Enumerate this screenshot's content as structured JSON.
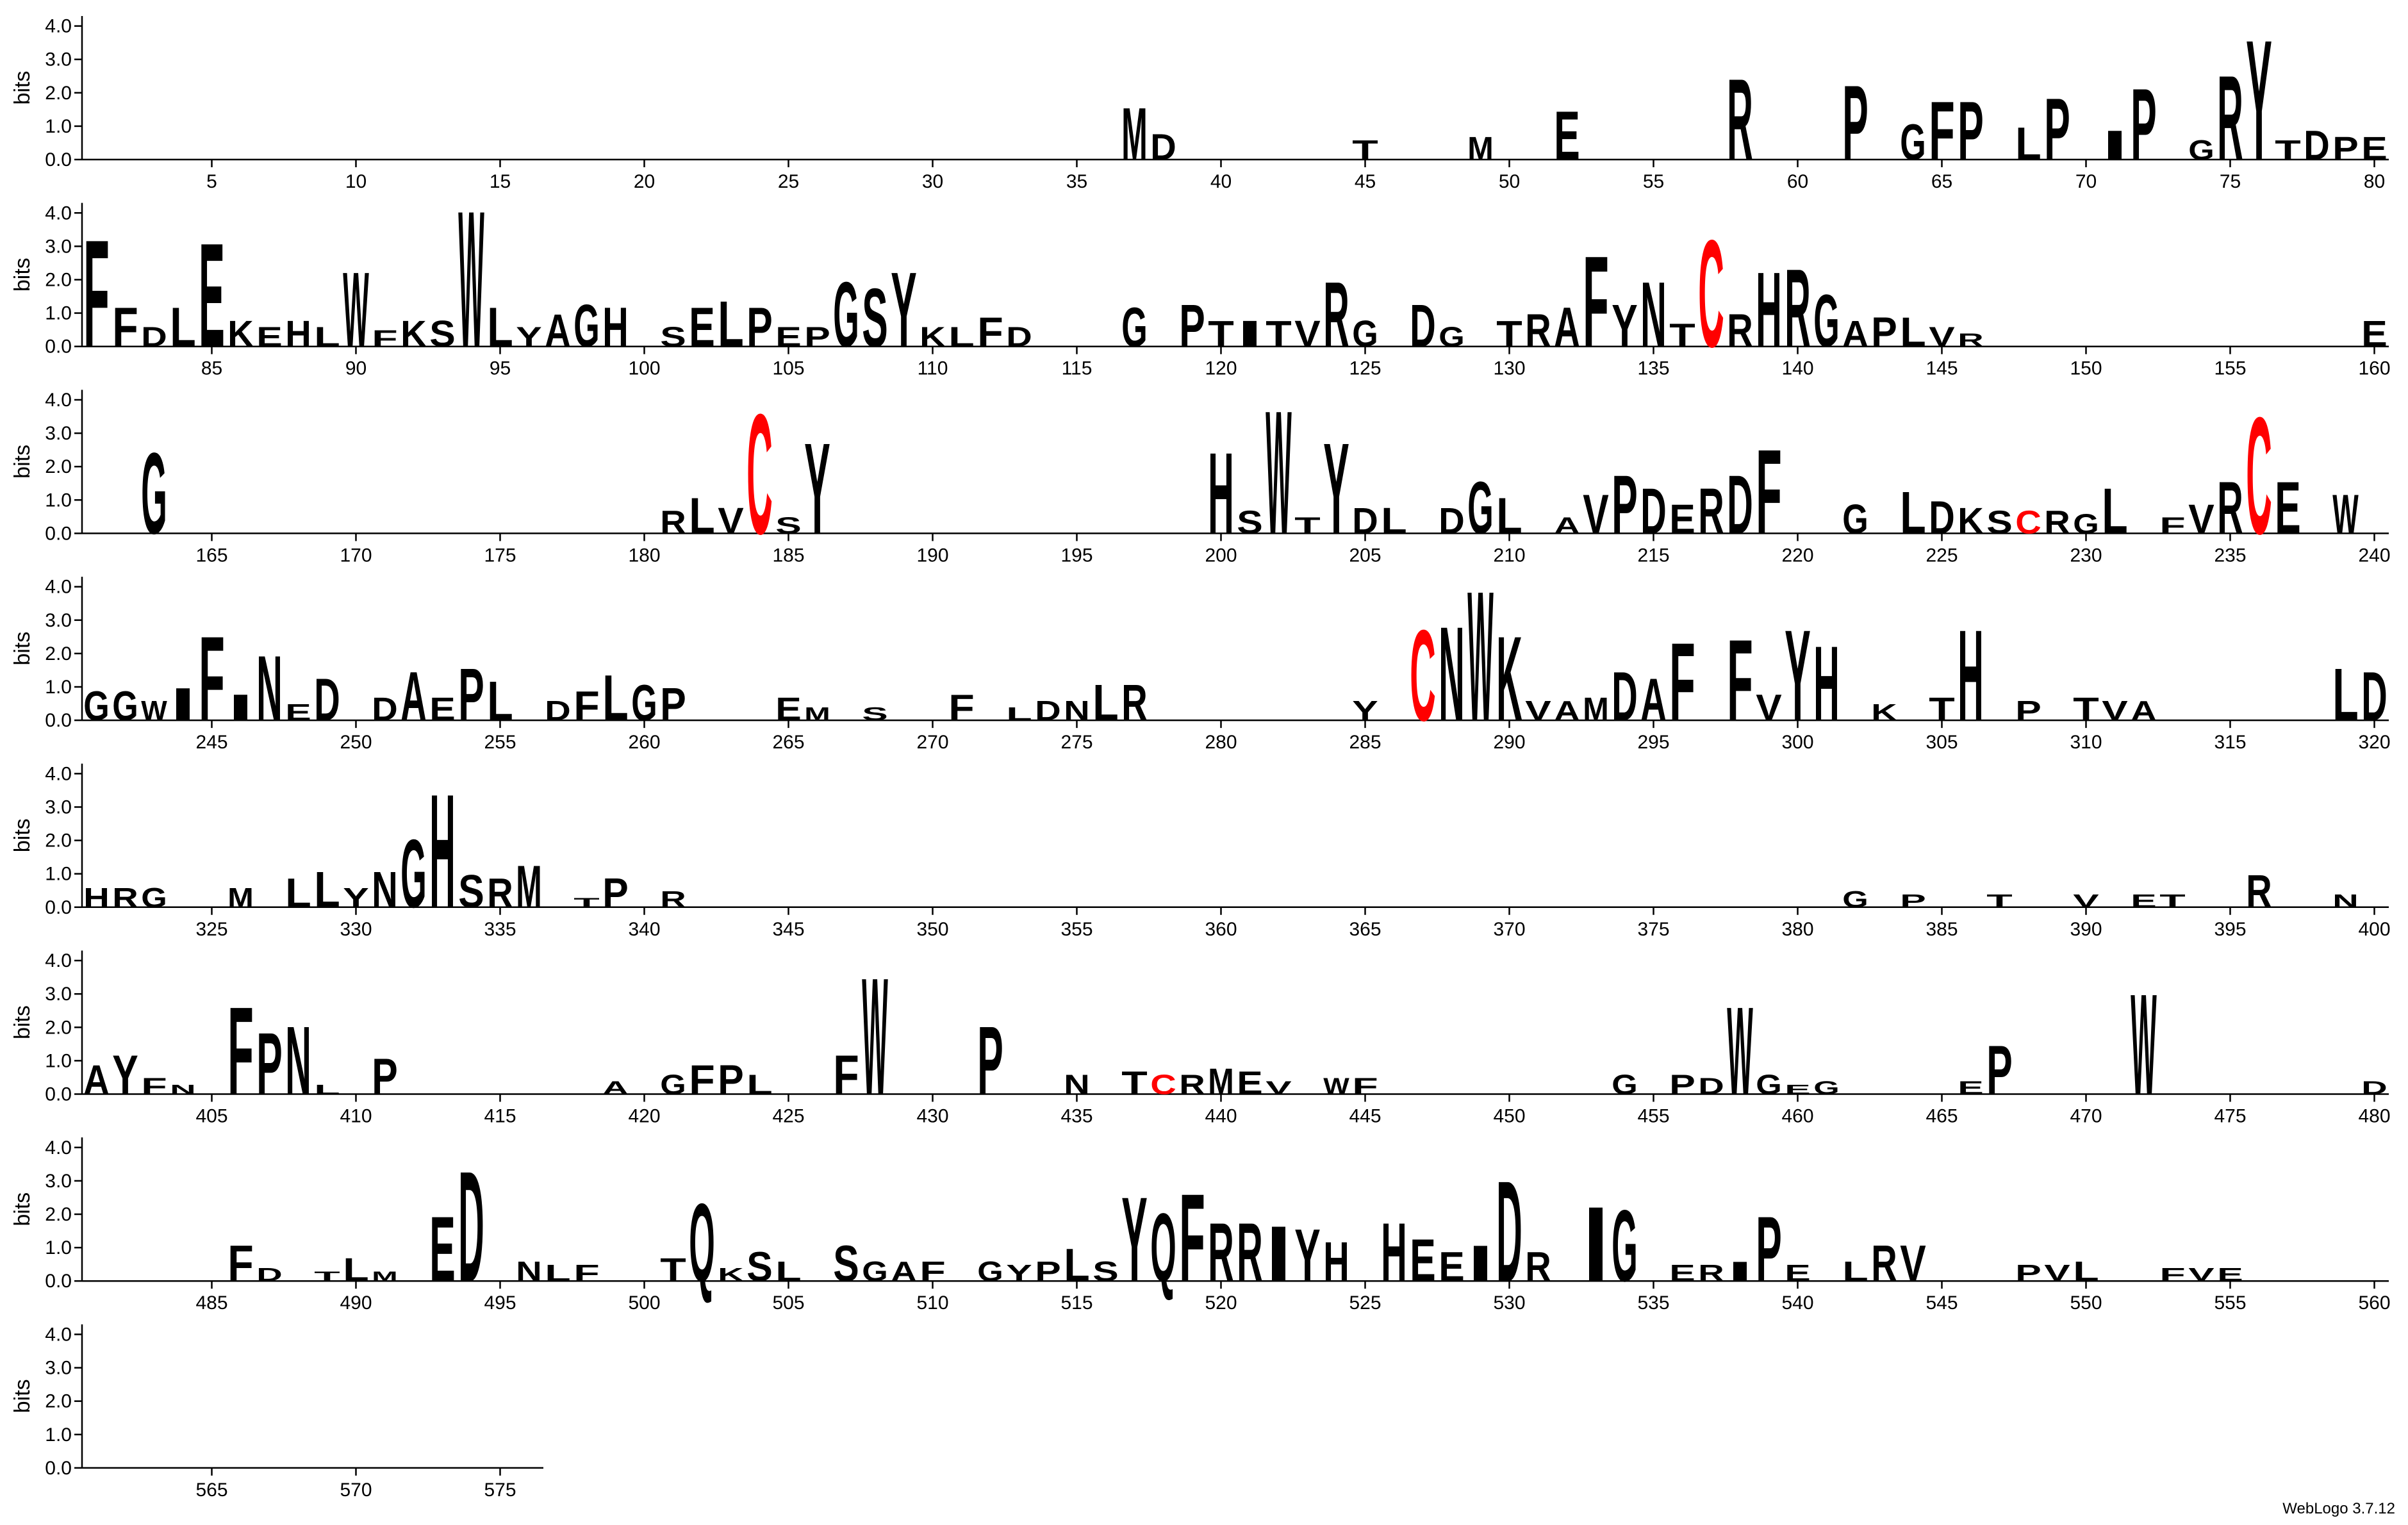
{
  "chart_data": [
    {
      "type": "logo",
      "y_label": "bits",
      "xlim": [
        0.5,
        80.5
      ],
      "ylim": [
        0,
        4.3
      ],
      "xticks": [
        5,
        10,
        15,
        20,
        25,
        30,
        35,
        40,
        45,
        50,
        55,
        60,
        65,
        70,
        75,
        80
      ],
      "yticks": [
        {
          "value": 0,
          "label": "0.0"
        },
        {
          "value": 1,
          "label": "1.0"
        },
        {
          "value": 2,
          "label": "2.0"
        },
        {
          "value": 3,
          "label": "3.0"
        },
        {
          "value": 4,
          "label": "4.0"
        }
      ],
      "color": "#000000",
      "highlight": {
        "letter": "C",
        "color": "#ff0000"
      },
      "x": [
        37,
        38,
        45,
        49,
        52,
        58,
        62,
        64,
        65,
        66,
        68,
        69,
        71,
        72,
        74,
        75,
        76,
        77,
        78,
        79,
        80
      ],
      "letters": [
        "M",
        "D",
        "T",
        "M",
        "E",
        "R",
        "P",
        "G",
        "F",
        "P",
        "L",
        "P",
        "I",
        "P",
        "G",
        "R",
        "Y",
        "T",
        "D",
        "P",
        "E"
      ],
      "values": [
        1.6,
        0.8,
        0.6,
        0.7,
        1.5,
        2.5,
        2.3,
        1.1,
        1.8,
        1.8,
        1.0,
        1.9,
        0.9,
        2.2,
        0.6,
        2.6,
        3.7,
        0.6,
        0.9,
        0.7,
        0.7
      ]
    },
    {
      "type": "logo",
      "y_label": "bits",
      "xlim": [
        80.5,
        160.5
      ],
      "ylim": [
        0,
        4.3
      ],
      "xticks": [
        85,
        90,
        95,
        100,
        105,
        110,
        115,
        120,
        125,
        130,
        135,
        140,
        145,
        150,
        155,
        160
      ],
      "yticks": [
        {
          "value": 0,
          "label": "0.0"
        },
        {
          "value": 1,
          "label": "1.0"
        },
        {
          "value": 2,
          "label": "2.0"
        },
        {
          "value": 3,
          "label": "3.0"
        },
        {
          "value": 4,
          "label": "4.0"
        }
      ],
      "color": "#000000",
      "highlight": {
        "letter": "C",
        "color": "#ff0000"
      },
      "x": [
        81,
        82,
        83,
        84,
        85,
        86,
        87,
        88,
        89,
        90,
        91,
        92,
        93,
        94,
        95,
        96,
        97,
        98,
        99,
        101,
        102,
        103,
        104,
        105,
        106,
        107,
        108,
        109,
        110,
        111,
        112,
        113,
        117,
        119,
        120,
        121,
        122,
        123,
        124,
        125,
        127,
        128,
        130,
        131,
        132,
        133,
        134,
        135,
        136,
        137,
        138,
        139,
        140,
        141,
        142,
        143,
        144,
        145,
        146,
        160
      ],
      "letters": [
        "F",
        "F",
        "D",
        "L",
        "E",
        "K",
        "E",
        "H",
        "L",
        "W",
        "F",
        "K",
        "S",
        "W",
        "L",
        "Y",
        "A",
        "G",
        "H",
        "S",
        "E",
        "L",
        "P",
        "E",
        "P",
        "G",
        "S",
        "Y",
        "K",
        "L",
        "F",
        "D",
        "G",
        "P",
        "T",
        "I",
        "T",
        "V",
        "R",
        "G",
        "D",
        "G",
        "T",
        "R",
        "A",
        "F",
        "Y",
        "N",
        "T",
        "C",
        "R",
        "H",
        "R",
        "G",
        "A",
        "P",
        "L",
        "V",
        "R",
        "E"
      ],
      "values": [
        3.3,
        1.2,
        0.6,
        1.2,
        3.2,
        0.8,
        0.6,
        0.8,
        0.6,
        2.3,
        0.5,
        0.8,
        0.8,
        4.2,
        1.2,
        0.6,
        1.0,
        1.3,
        1.2,
        0.6,
        1.2,
        1.4,
        1.2,
        0.6,
        0.6,
        2.0,
        1.8,
        2.3,
        0.6,
        0.6,
        0.9,
        0.6,
        1.2,
        1.3,
        0.8,
        0.8,
        0.8,
        0.8,
        2.0,
        0.8,
        1.3,
        0.6,
        0.8,
        1.0,
        1.2,
        2.8,
        1.3,
        2.0,
        0.7,
        3.3,
        1.0,
        2.3,
        2.4,
        1.6,
        0.8,
        0.9,
        0.9,
        0.6,
        0.4,
        0.8
      ]
    },
    {
      "type": "logo",
      "y_label": "bits",
      "xlim": [
        160.5,
        240.5
      ],
      "ylim": [
        0,
        4.3
      ],
      "xticks": [
        165,
        170,
        175,
        180,
        185,
        190,
        195,
        200,
        205,
        210,
        215,
        220,
        225,
        230,
        235,
        240
      ],
      "yticks": [
        {
          "value": 0,
          "label": "0.0"
        },
        {
          "value": 1,
          "label": "1.0"
        },
        {
          "value": 2,
          "label": "2.0"
        },
        {
          "value": 3,
          "label": "3.0"
        },
        {
          "value": 4,
          "label": "4.0"
        }
      ],
      "color": "#000000",
      "highlight": {
        "letter": "C",
        "color": "#ff0000"
      },
      "x": [
        163,
        181,
        182,
        183,
        184,
        185,
        186,
        200,
        201,
        202,
        203,
        204,
        205,
        206,
        208,
        209,
        210,
        212,
        213,
        214,
        215,
        216,
        217,
        218,
        219,
        222,
        224,
        225,
        226,
        227,
        228,
        229,
        230,
        231,
        233,
        234,
        235,
        236,
        237,
        239
      ],
      "letters": [
        "G",
        "R",
        "L",
        "V",
        "C",
        "S",
        "Y",
        "H",
        "S",
        "W",
        "T",
        "Y",
        "D",
        "L",
        "D",
        "G",
        "L",
        "A",
        "V",
        "P",
        "D",
        "E",
        "R",
        "D",
        "F",
        "G",
        "L",
        "D",
        "K",
        "S",
        "C",
        "R",
        "G",
        "L",
        "F",
        "V",
        "R",
        "C",
        "E",
        "W"
      ],
      "values": [
        2.5,
        0.7,
        1.1,
        0.8,
        3.7,
        0.5,
        2.8,
        2.5,
        0.7,
        3.8,
        0.5,
        2.8,
        0.8,
        0.8,
        0.8,
        1.6,
        1.1,
        0.5,
        1.2,
        1.8,
        1.4,
        0.9,
        1.4,
        1.8,
        2.6,
        0.9,
        1.3,
        1.0,
        0.8,
        0.7,
        0.7,
        0.7,
        0.6,
        1.4,
        0.5,
        0.9,
        1.6,
        3.6,
        1.6,
        1.2
      ]
    },
    {
      "type": "logo",
      "y_label": "bits",
      "xlim": [
        240.5,
        320.5
      ],
      "ylim": [
        0,
        4.3
      ],
      "xticks": [
        245,
        250,
        255,
        260,
        265,
        270,
        275,
        280,
        285,
        290,
        295,
        300,
        305,
        310,
        315,
        320
      ],
      "yticks": [
        {
          "value": 0,
          "label": "0.0"
        },
        {
          "value": 1,
          "label": "1.0"
        },
        {
          "value": 2,
          "label": "2.0"
        },
        {
          "value": 3,
          "label": "3.0"
        },
        {
          "value": 4,
          "label": "4.0"
        }
      ],
      "color": "#000000",
      "highlight": {
        "letter": "C",
        "color": "#ff0000"
      },
      "x": [
        241,
        242,
        243,
        244,
        245,
        246,
        247,
        248,
        249,
        251,
        252,
        253,
        254,
        255,
        257,
        258,
        259,
        260,
        261,
        265,
        266,
        268,
        271,
        273,
        274,
        275,
        276,
        277,
        285,
        287,
        288,
        289,
        290,
        291,
        292,
        293,
        294,
        295,
        296,
        298,
        299,
        300,
        301,
        303,
        305,
        306,
        308,
        310,
        311,
        312,
        319,
        320
      ],
      "letters": [
        "G",
        "G",
        "W",
        "I",
        "F",
        "I",
        "N",
        "E",
        "D",
        "D",
        "A",
        "E",
        "P",
        "L",
        "D",
        "F",
        "L",
        "G",
        "P",
        "E",
        "M",
        "S",
        "F",
        "L",
        "D",
        "N",
        "L",
        "R",
        "Y",
        "C",
        "N",
        "W",
        "K",
        "V",
        "A",
        "M",
        "D",
        "A",
        "F",
        "F",
        "V",
        "Y",
        "H",
        "K",
        "T",
        "H",
        "P",
        "T",
        "V",
        "A",
        "L",
        "D"
      ],
      "values": [
        0.9,
        0.9,
        0.6,
        1.0,
        2.6,
        0.8,
        2.0,
        0.5,
        1.3,
        0.7,
        1.5,
        0.7,
        1.6,
        1.2,
        0.6,
        0.9,
        1.4,
        1.1,
        1.0,
        0.7,
        0.4,
        0.4,
        0.8,
        0.4,
        0.6,
        0.6,
        1.1,
        1.1,
        0.6,
        2.8,
        2.9,
        4.0,
        2.6,
        0.6,
        0.6,
        0.7,
        1.5,
        1.3,
        2.4,
        2.5,
        0.8,
        2.8,
        2.3,
        0.5,
        0.7,
        2.8,
        0.6,
        0.7,
        0.6,
        0.6,
        1.6,
        1.5
      ]
    },
    {
      "type": "logo",
      "y_label": "bits",
      "xlim": [
        320.5,
        400.5
      ],
      "ylim": [
        0,
        4.3
      ],
      "xticks": [
        325,
        330,
        335,
        340,
        345,
        350,
        355,
        360,
        365,
        370,
        375,
        380,
        385,
        390,
        395,
        400
      ],
      "yticks": [
        {
          "value": 0,
          "label": "0.0"
        },
        {
          "value": 1,
          "label": "1.0"
        },
        {
          "value": 2,
          "label": "2.0"
        },
        {
          "value": 3,
          "label": "3.0"
        },
        {
          "value": 4,
          "label": "4.0"
        }
      ],
      "color": "#000000",
      "highlight": {
        "letter": "C",
        "color": "#ff0000"
      },
      "x": [
        321,
        322,
        323,
        326,
        328,
        329,
        330,
        331,
        332,
        333,
        334,
        335,
        336,
        338,
        339,
        341,
        382,
        384,
        387,
        390,
        392,
        393,
        396,
        399
      ],
      "letters": [
        "H",
        "R",
        "G",
        "M",
        "L",
        "L",
        "Y",
        "N",
        "G",
        "H",
        "S",
        "R",
        "M",
        "T",
        "P",
        "R",
        "G",
        "P",
        "T",
        "V",
        "E",
        "T",
        "R",
        "N"
      ],
      "values": [
        0.6,
        0.6,
        0.6,
        0.6,
        0.9,
        1.1,
        0.6,
        1.1,
        2.1,
        3.5,
        1.0,
        0.9,
        1.3,
        0.3,
        0.9,
        0.5,
        0.5,
        0.4,
        0.4,
        0.4,
        0.4,
        0.4,
        1.0,
        0.4
      ]
    },
    {
      "type": "logo",
      "y_label": "bits",
      "xlim": [
        400.5,
        480.5
      ],
      "ylim": [
        0,
        4.3
      ],
      "xticks": [
        405,
        410,
        415,
        420,
        425,
        430,
        435,
        440,
        445,
        450,
        455,
        460,
        465,
        470,
        475,
        480
      ],
      "yticks": [
        {
          "value": 0,
          "label": "0.0"
        },
        {
          "value": 1,
          "label": "1.0"
        },
        {
          "value": 2,
          "label": "2.0"
        },
        {
          "value": 3,
          "label": "3.0"
        },
        {
          "value": 4,
          "label": "4.0"
        }
      ],
      "color": "#000000",
      "highlight": {
        "letter": "C",
        "color": "#ff0000"
      },
      "x": [
        401,
        402,
        403,
        404,
        406,
        407,
        408,
        409,
        411,
        419,
        421,
        422,
        423,
        424,
        427,
        428,
        432,
        435,
        437,
        438,
        439,
        440,
        441,
        442,
        444,
        445,
        454,
        456,
        457,
        458,
        459,
        460,
        461,
        466,
        467,
        472,
        480
      ],
      "letters": [
        "A",
        "Y",
        "F",
        "N",
        "F",
        "P",
        "N",
        "L",
        "P",
        "A",
        "G",
        "F",
        "P",
        "L",
        "F",
        "W",
        "P",
        "N",
        "T",
        "C",
        "R",
        "M",
        "E",
        "V",
        "W",
        "F",
        "G",
        "P",
        "D",
        "W",
        "G",
        "E",
        "G",
        "E",
        "P",
        "W",
        "D"
      ],
      "values": [
        0.9,
        1.2,
        0.5,
        0.3,
        2.7,
        1.9,
        2.1,
        0.3,
        1.1,
        0.4,
        0.6,
        0.9,
        0.9,
        0.6,
        1.2,
        3.6,
        2.1,
        0.6,
        0.7,
        0.6,
        0.6,
        0.8,
        0.7,
        0.4,
        0.5,
        0.5,
        0.6,
        0.6,
        0.5,
        2.7,
        0.6,
        0.3,
        0.4,
        0.4,
        1.5,
        3.1,
        0.4
      ]
    },
    {
      "type": "logo",
      "y_label": "bits",
      "xlim": [
        480.5,
        560.5
      ],
      "ylim": [
        0,
        4.3
      ],
      "xticks": [
        485,
        490,
        495,
        500,
        505,
        510,
        515,
        520,
        525,
        530,
        535,
        540,
        545,
        550,
        555,
        560
      ],
      "yticks": [
        {
          "value": 0,
          "label": "0.0"
        },
        {
          "value": 1,
          "label": "1.0"
        },
        {
          "value": 2,
          "label": "2.0"
        },
        {
          "value": 3,
          "label": "3.0"
        },
        {
          "value": 4,
          "label": "4.0"
        }
      ],
      "color": "#000000",
      "highlight": {
        "letter": "C",
        "color": "#ff0000"
      },
      "x": [
        486,
        487,
        489,
        490,
        491,
        493,
        494,
        496,
        497,
        498,
        501,
        502,
        503,
        504,
        505,
        507,
        508,
        509,
        510,
        512,
        513,
        514,
        515,
        516,
        517,
        518,
        519,
        520,
        521,
        522,
        523,
        524,
        526,
        527,
        528,
        529,
        530,
        531,
        533,
        534,
        536,
        537,
        538,
        539,
        540,
        542,
        543,
        544,
        548,
        549,
        550,
        553,
        554,
        555
      ],
      "letters": [
        "F",
        "D",
        "T",
        "L",
        "M",
        "E",
        "D",
        "N",
        "L",
        "F",
        "T",
        "Q",
        "K",
        "S",
        "L",
        "S",
        "G",
        "A",
        "F",
        "G",
        "Y",
        "P",
        "L",
        "S",
        "Y",
        "Q",
        "F",
        "R",
        "R",
        "I",
        "Y",
        "H",
        "H",
        "E",
        "E",
        "I",
        "D",
        "R",
        "I",
        "G",
        "E",
        "R",
        "I",
        "P",
        "E",
        "L",
        "R",
        "V",
        "P",
        "V",
        "L",
        "F",
        "V",
        "E"
      ],
      "values": [
        1.1,
        0.4,
        0.3,
        0.7,
        0.3,
        2.0,
        3.4,
        0.6,
        0.5,
        0.5,
        0.7,
        2.4,
        0.4,
        0.9,
        0.6,
        1.1,
        0.6,
        0.6,
        0.6,
        0.6,
        0.5,
        0.6,
        1.0,
        0.6,
        2.6,
        2.1,
        2.7,
        1.8,
        1.8,
        1.7,
        1.6,
        1.2,
        1.8,
        1.3,
        0.9,
        1.1,
        3.1,
        0.9,
        2.3,
        2.2,
        0.5,
        0.5,
        0.6,
        2.0,
        0.5,
        0.6,
        1.1,
        1.1,
        0.5,
        0.5,
        0.6,
        0.4,
        0.4,
        0.4
      ]
    },
    {
      "type": "logo",
      "y_label": "bits",
      "xlim": [
        560.5,
        576.5
      ],
      "ylim": [
        0,
        4.3
      ],
      "xticks": [
        565,
        570,
        575
      ],
      "yticks": [
        {
          "value": 0,
          "label": "0.0"
        },
        {
          "value": 1,
          "label": "1.0"
        },
        {
          "value": 2,
          "label": "2.0"
        },
        {
          "value": 3,
          "label": "3.0"
        },
        {
          "value": 4,
          "label": "4.0"
        }
      ],
      "color": "#000000",
      "highlight": {
        "letter": "C",
        "color": "#ff0000"
      },
      "x": [],
      "letters": [],
      "values": []
    }
  ],
  "footer": "WebLogo 3.7.12"
}
